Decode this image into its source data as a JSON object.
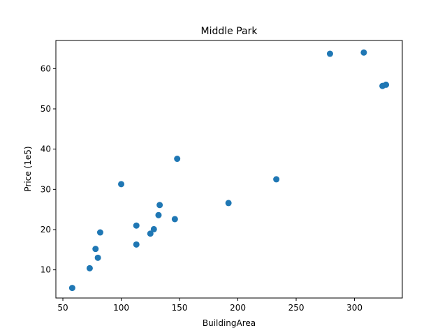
{
  "chart_data": {
    "type": "scatter",
    "title": "Middle Park",
    "xlabel": "BuildingArea",
    "ylabel": "Price (1e5)",
    "xlim": [
      44,
      341
    ],
    "ylim": [
      3,
      67
    ],
    "xticks": [
      50,
      100,
      150,
      200,
      250,
      300
    ],
    "yticks": [
      10,
      20,
      30,
      40,
      50,
      60
    ],
    "grid": false,
    "marker_color": "#1f77b4",
    "points": [
      {
        "x": 58,
        "y": 5.5
      },
      {
        "x": 73,
        "y": 10.4
      },
      {
        "x": 78,
        "y": 15.2
      },
      {
        "x": 80,
        "y": 13.0
      },
      {
        "x": 82,
        "y": 19.3
      },
      {
        "x": 100,
        "y": 31.3
      },
      {
        "x": 113,
        "y": 16.3
      },
      {
        "x": 113,
        "y": 21.0
      },
      {
        "x": 125,
        "y": 19.0
      },
      {
        "x": 128,
        "y": 20.1
      },
      {
        "x": 132,
        "y": 23.6
      },
      {
        "x": 133,
        "y": 26.1
      },
      {
        "x": 146,
        "y": 22.6
      },
      {
        "x": 148,
        "y": 37.6
      },
      {
        "x": 192,
        "y": 26.6
      },
      {
        "x": 233,
        "y": 32.5
      },
      {
        "x": 279,
        "y": 63.7
      },
      {
        "x": 308,
        "y": 64.0
      },
      {
        "x": 324,
        "y": 55.7
      },
      {
        "x": 327,
        "y": 56.0
      }
    ]
  }
}
